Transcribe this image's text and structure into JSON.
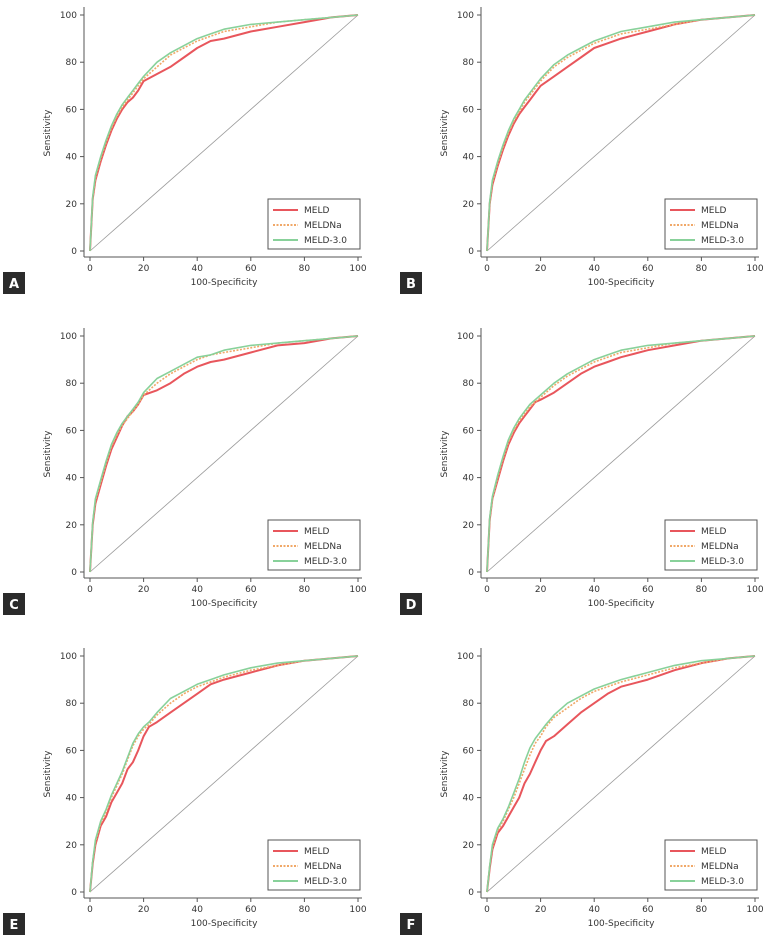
{
  "chart_data": [
    {
      "panel": "A",
      "type": "line",
      "xlabel": "100-Specificity",
      "ylabel": "Sensitivity",
      "xlim": [
        0,
        100
      ],
      "ylim": [
        0,
        100
      ],
      "xticks": [
        "0",
        "20",
        "40",
        "60",
        "80",
        "100"
      ],
      "yticks": [
        "0",
        "20",
        "40",
        "60",
        "80",
        "100"
      ],
      "legend": [
        "MELD",
        "MELDNa",
        "MELD-3.0"
      ],
      "series": [
        {
          "name": "MELD",
          "color": "#e8565c",
          "style": "solid",
          "x": [
            0,
            1,
            2,
            4,
            6,
            8,
            10,
            12,
            14,
            16,
            18,
            20,
            25,
            30,
            35,
            40,
            45,
            50,
            60,
            70,
            80,
            90,
            100
          ],
          "y": [
            0,
            22,
            30,
            38,
            45,
            51,
            56,
            60,
            63,
            65,
            68,
            72,
            75,
            78,
            82,
            86,
            89,
            90,
            93,
            95,
            97,
            99,
            100
          ]
        },
        {
          "name": "MELDNa",
          "color": "#f0a868",
          "style": "dashed",
          "x": [
            0,
            1,
            2,
            4,
            6,
            8,
            10,
            12,
            14,
            16,
            18,
            20,
            25,
            30,
            35,
            40,
            45,
            50,
            60,
            70,
            80,
            90,
            100
          ],
          "y": [
            0,
            22,
            31,
            39,
            46,
            52,
            57,
            61,
            64,
            67,
            70,
            73,
            78,
            83,
            86,
            89,
            91,
            93,
            95,
            97,
            98,
            99,
            100
          ]
        },
        {
          "name": "MELD-3.0",
          "color": "#88d19a",
          "style": "solid",
          "x": [
            0,
            1,
            2,
            4,
            6,
            8,
            10,
            12,
            14,
            16,
            18,
            20,
            25,
            30,
            35,
            40,
            45,
            50,
            60,
            70,
            80,
            90,
            100
          ],
          "y": [
            0,
            23,
            32,
            40,
            47,
            53,
            58,
            62,
            65,
            68,
            71,
            74,
            80,
            84,
            87,
            90,
            92,
            94,
            96,
            97,
            98,
            99,
            100
          ]
        }
      ]
    },
    {
      "panel": "B",
      "type": "line",
      "xlabel": "100-Specificity",
      "ylabel": "Sensitivity",
      "xlim": [
        0,
        100
      ],
      "ylim": [
        0,
        100
      ],
      "xticks": [
        "0",
        "20",
        "40",
        "60",
        "80",
        "100"
      ],
      "yticks": [
        "0",
        "20",
        "40",
        "60",
        "80",
        "100"
      ],
      "legend": [
        "MELD",
        "MELDNa",
        "MELD-3.0"
      ],
      "series": [
        {
          "name": "MELD",
          "color": "#e8565c",
          "style": "solid",
          "x": [
            0,
            1,
            2,
            4,
            6,
            8,
            10,
            12,
            14,
            16,
            18,
            20,
            25,
            30,
            35,
            40,
            45,
            50,
            60,
            70,
            80,
            90,
            100
          ],
          "y": [
            0,
            20,
            28,
            36,
            43,
            49,
            54,
            58,
            61,
            64,
            67,
            70,
            74,
            78,
            82,
            86,
            88,
            90,
            93,
            96,
            98,
            99,
            100
          ]
        },
        {
          "name": "MELDNa",
          "color": "#f0a868",
          "style": "dashed",
          "x": [
            0,
            1,
            2,
            4,
            6,
            8,
            10,
            12,
            14,
            16,
            18,
            20,
            25,
            30,
            35,
            40,
            45,
            50,
            60,
            70,
            80,
            90,
            100
          ],
          "y": [
            0,
            20,
            29,
            37,
            44,
            50,
            55,
            59,
            63,
            66,
            69,
            72,
            78,
            82,
            85,
            88,
            90,
            92,
            94,
            96,
            98,
            99,
            100
          ]
        },
        {
          "name": "MELD-3.0",
          "color": "#88d19a",
          "style": "solid",
          "x": [
            0,
            1,
            2,
            4,
            6,
            8,
            10,
            12,
            14,
            16,
            18,
            20,
            25,
            30,
            35,
            40,
            45,
            50,
            60,
            70,
            80,
            90,
            100
          ],
          "y": [
            0,
            21,
            30,
            38,
            45,
            51,
            56,
            60,
            64,
            67,
            70,
            73,
            79,
            83,
            86,
            89,
            91,
            93,
            95,
            97,
            98,
            99,
            100
          ]
        }
      ]
    },
    {
      "panel": "C",
      "type": "line",
      "xlabel": "100-Specificity",
      "ylabel": "Sensitivity",
      "xlim": [
        0,
        100
      ],
      "ylim": [
        0,
        100
      ],
      "xticks": [
        "0",
        "20",
        "40",
        "60",
        "80",
        "100"
      ],
      "yticks": [
        "0",
        "20",
        "40",
        "60",
        "80",
        "100"
      ],
      "legend": [
        "MELD",
        "MELDNa",
        "MELD-3.0"
      ],
      "series": [
        {
          "name": "MELD",
          "color": "#e8565c",
          "style": "solid",
          "x": [
            0,
            1,
            2,
            4,
            6,
            8,
            10,
            12,
            14,
            16,
            18,
            20,
            25,
            30,
            35,
            40,
            45,
            50,
            60,
            70,
            80,
            90,
            100
          ],
          "y": [
            0,
            20,
            29,
            37,
            45,
            52,
            57,
            62,
            66,
            68,
            71,
            75,
            77,
            80,
            84,
            87,
            89,
            90,
            93,
            96,
            97,
            99,
            100
          ]
        },
        {
          "name": "MELDNa",
          "color": "#f0a868",
          "style": "dashed",
          "x": [
            0,
            1,
            2,
            4,
            6,
            8,
            10,
            12,
            14,
            16,
            18,
            20,
            25,
            30,
            35,
            40,
            45,
            50,
            60,
            70,
            80,
            90,
            100
          ],
          "y": [
            0,
            21,
            30,
            38,
            46,
            53,
            58,
            62,
            65,
            68,
            71,
            75,
            80,
            84,
            87,
            90,
            92,
            93,
            95,
            97,
            98,
            99,
            100
          ]
        },
        {
          "name": "MELD-3.0",
          "color": "#88d19a",
          "style": "solid",
          "x": [
            0,
            1,
            2,
            4,
            6,
            8,
            10,
            12,
            14,
            16,
            18,
            20,
            25,
            30,
            35,
            40,
            45,
            50,
            60,
            70,
            80,
            90,
            100
          ],
          "y": [
            0,
            21,
            31,
            39,
            47,
            54,
            59,
            63,
            66,
            69,
            72,
            76,
            82,
            85,
            88,
            91,
            92,
            94,
            96,
            97,
            98,
            99,
            100
          ]
        }
      ]
    },
    {
      "panel": "D",
      "type": "line",
      "xlabel": "100-Specificity",
      "ylabel": "Sensitivity",
      "xlim": [
        0,
        100
      ],
      "ylim": [
        0,
        100
      ],
      "xticks": [
        "0",
        "20",
        "40",
        "60",
        "80",
        "100"
      ],
      "yticks": [
        "0",
        "20",
        "40",
        "60",
        "80",
        "100"
      ],
      "legend": [
        "MELD",
        "MELDNa",
        "MELD-3.0"
      ],
      "series": [
        {
          "name": "MELD",
          "color": "#e8565c",
          "style": "solid",
          "x": [
            0,
            1,
            2,
            4,
            6,
            8,
            10,
            12,
            14,
            16,
            18,
            20,
            25,
            30,
            35,
            40,
            45,
            50,
            60,
            70,
            80,
            90,
            100
          ],
          "y": [
            0,
            22,
            31,
            39,
            47,
            54,
            59,
            63,
            66,
            69,
            72,
            73,
            76,
            80,
            84,
            87,
            89,
            91,
            94,
            96,
            98,
            99,
            100
          ]
        },
        {
          "name": "MELDNa",
          "color": "#f0a868",
          "style": "dashed",
          "x": [
            0,
            1,
            2,
            4,
            6,
            8,
            10,
            12,
            14,
            16,
            18,
            20,
            25,
            30,
            35,
            40,
            45,
            50,
            60,
            70,
            80,
            90,
            100
          ],
          "y": [
            0,
            22,
            31,
            40,
            48,
            55,
            60,
            64,
            67,
            70,
            72,
            74,
            79,
            83,
            86,
            89,
            91,
            93,
            95,
            97,
            98,
            99,
            100
          ]
        },
        {
          "name": "MELD-3.0",
          "color": "#88d19a",
          "style": "solid",
          "x": [
            0,
            1,
            2,
            4,
            6,
            8,
            10,
            12,
            14,
            16,
            18,
            20,
            25,
            30,
            35,
            40,
            45,
            50,
            60,
            70,
            80,
            90,
            100
          ],
          "y": [
            0,
            23,
            32,
            41,
            49,
            56,
            61,
            65,
            68,
            71,
            73,
            75,
            80,
            84,
            87,
            90,
            92,
            94,
            96,
            97,
            98,
            99,
            100
          ]
        }
      ]
    },
    {
      "panel": "E",
      "type": "line",
      "xlabel": "100-Specificity",
      "ylabel": "Sensitivity",
      "xlim": [
        0,
        100
      ],
      "ylim": [
        0,
        100
      ],
      "xticks": [
        "0",
        "20",
        "40",
        "60",
        "80",
        "100"
      ],
      "yticks": [
        "0",
        "20",
        "40",
        "60",
        "80",
        "100"
      ],
      "legend": [
        "MELD",
        "MELDNa",
        "MELD-3.0"
      ],
      "series": [
        {
          "name": "MELD",
          "color": "#e8565c",
          "style": "solid",
          "x": [
            0,
            1,
            2,
            4,
            6,
            8,
            10,
            12,
            14,
            16,
            18,
            20,
            22,
            25,
            30,
            35,
            40,
            45,
            50,
            60,
            70,
            80,
            90,
            100
          ],
          "y": [
            0,
            12,
            20,
            28,
            32,
            38,
            42,
            46,
            52,
            55,
            60,
            66,
            70,
            72,
            76,
            80,
            84,
            88,
            90,
            93,
            96,
            98,
            99,
            100
          ]
        },
        {
          "name": "MELDNa",
          "color": "#f0a868",
          "style": "dashed",
          "x": [
            0,
            1,
            2,
            4,
            6,
            8,
            10,
            12,
            14,
            16,
            18,
            20,
            22,
            25,
            30,
            35,
            40,
            45,
            50,
            60,
            70,
            80,
            90,
            100
          ],
          "y": [
            0,
            13,
            21,
            29,
            34,
            40,
            45,
            50,
            56,
            62,
            66,
            69,
            71,
            75,
            80,
            84,
            87,
            89,
            91,
            94,
            96,
            98,
            99,
            100
          ]
        },
        {
          "name": "MELD-3.0",
          "color": "#88d19a",
          "style": "solid",
          "x": [
            0,
            1,
            2,
            4,
            6,
            8,
            10,
            12,
            14,
            16,
            18,
            20,
            22,
            25,
            30,
            35,
            40,
            45,
            50,
            60,
            70,
            80,
            90,
            100
          ],
          "y": [
            0,
            13,
            22,
            30,
            35,
            41,
            46,
            51,
            57,
            63,
            67,
            70,
            72,
            76,
            82,
            85,
            88,
            90,
            92,
            95,
            97,
            98,
            99,
            100
          ]
        }
      ]
    },
    {
      "panel": "F",
      "type": "line",
      "xlabel": "100-Specificity",
      "ylabel": "Sensitivity",
      "xlim": [
        0,
        100
      ],
      "ylim": [
        0,
        100
      ],
      "xticks": [
        "0",
        "20",
        "40",
        "60",
        "80",
        "100"
      ],
      "yticks": [
        "0",
        "20",
        "40",
        "60",
        "80",
        "100"
      ],
      "legend": [
        "MELD",
        "MELDNa",
        "MELD-3.0"
      ],
      "series": [
        {
          "name": "MELD",
          "color": "#e8565c",
          "style": "solid",
          "x": [
            0,
            1,
            2,
            4,
            6,
            8,
            10,
            12,
            14,
            16,
            18,
            20,
            22,
            25,
            30,
            35,
            40,
            45,
            50,
            60,
            70,
            80,
            90,
            100
          ],
          "y": [
            0,
            10,
            18,
            25,
            28,
            32,
            36,
            40,
            46,
            50,
            55,
            60,
            64,
            66,
            71,
            76,
            80,
            84,
            87,
            90,
            94,
            97,
            99,
            100
          ]
        },
        {
          "name": "MELDNa",
          "color": "#f0a868",
          "style": "dashed",
          "x": [
            0,
            1,
            2,
            4,
            6,
            8,
            10,
            12,
            14,
            16,
            18,
            20,
            22,
            25,
            30,
            35,
            40,
            45,
            50,
            60,
            70,
            80,
            90,
            100
          ],
          "y": [
            0,
            11,
            19,
            26,
            30,
            35,
            40,
            46,
            52,
            58,
            63,
            66,
            70,
            74,
            78,
            82,
            85,
            87,
            89,
            92,
            95,
            97,
            99,
            100
          ]
        },
        {
          "name": "MELD-3.0",
          "color": "#88d19a",
          "style": "solid",
          "x": [
            0,
            1,
            2,
            4,
            6,
            8,
            10,
            12,
            14,
            16,
            18,
            20,
            22,
            25,
            30,
            35,
            40,
            45,
            50,
            60,
            70,
            80,
            90,
            100
          ],
          "y": [
            0,
            11,
            20,
            27,
            31,
            36,
            42,
            48,
            55,
            61,
            65,
            68,
            71,
            75,
            80,
            83,
            86,
            88,
            90,
            93,
            96,
            98,
            99,
            100
          ]
        }
      ]
    }
  ]
}
